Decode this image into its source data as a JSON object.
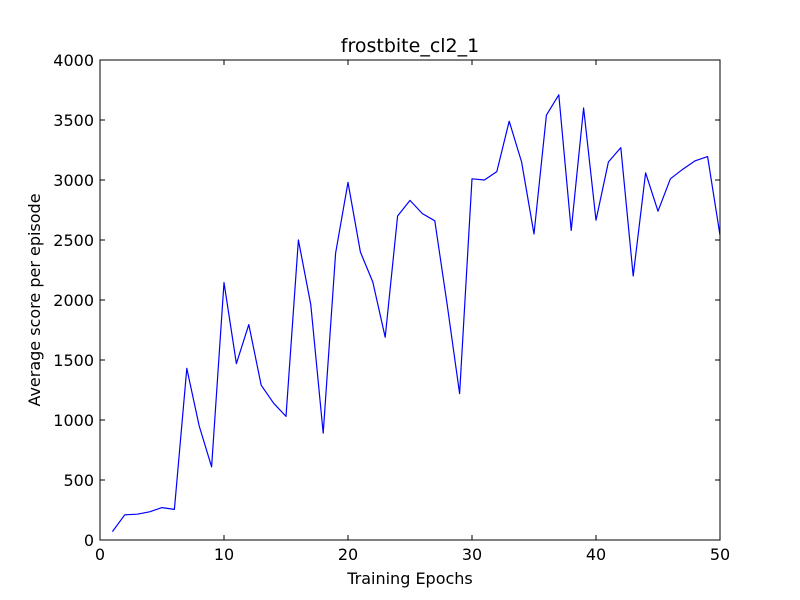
{
  "chart_data": {
    "type": "line",
    "title": "frostbite_cl2_1",
    "xlabel": "Training Epochs",
    "ylabel": "Average score per episode",
    "xlim": [
      0,
      50
    ],
    "ylim": [
      0,
      4000
    ],
    "xticks": [
      0,
      10,
      20,
      30,
      40,
      50
    ],
    "yticks": [
      0,
      500,
      1000,
      1500,
      2000,
      2500,
      3000,
      3500,
      4000
    ],
    "grid": false,
    "series": [
      {
        "color": "#0000ff",
        "x": [
          1,
          2,
          3,
          4,
          5,
          6,
          7,
          8,
          9,
          10,
          11,
          12,
          13,
          14,
          15,
          16,
          17,
          18,
          19,
          20,
          21,
          22,
          23,
          24,
          25,
          26,
          27,
          28,
          29,
          30,
          31,
          32,
          33,
          34,
          35,
          36,
          37,
          38,
          39,
          40,
          41,
          42,
          43,
          44,
          45,
          46,
          47,
          48,
          49,
          50
        ],
        "y": [
          70,
          210,
          215,
          235,
          270,
          255,
          1430,
          950,
          610,
          2145,
          1470,
          1795,
          1290,
          1140,
          1030,
          2500,
          1960,
          890,
          2390,
          2980,
          2400,
          2150,
          1690,
          2700,
          2830,
          2720,
          2660,
          1960,
          1220,
          3010,
          3000,
          3070,
          3490,
          3150,
          2550,
          3540,
          3710,
          2580,
          3600,
          2665,
          3150,
          3270,
          2200,
          3060,
          2740,
          3010,
          3090,
          3160,
          3195,
          2540
        ]
      }
    ]
  }
}
